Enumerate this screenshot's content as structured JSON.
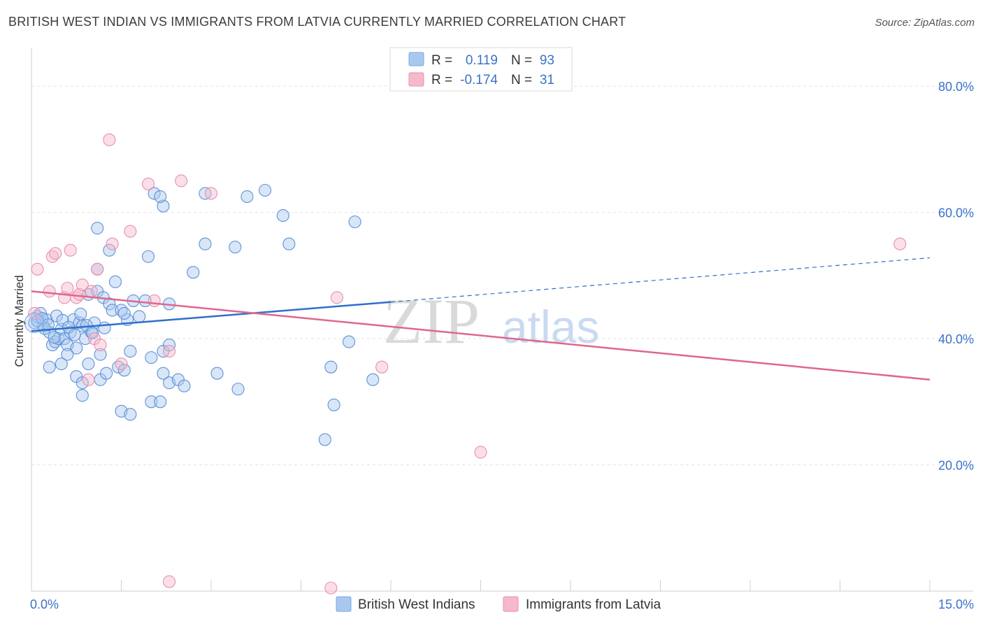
{
  "title": "BRITISH WEST INDIAN VS IMMIGRANTS FROM LATVIA CURRENTLY MARRIED CORRELATION CHART",
  "source": "Source: ZipAtlas.com",
  "watermark": {
    "zip": "ZIP",
    "atlas": "atlas"
  },
  "legend_box": {
    "rows": [
      {
        "r_label": "R =",
        "r_value": "0.119",
        "n_label": "N =",
        "n_value": "93",
        "color": "#a9c8f0"
      },
      {
        "r_label": "R =",
        "r_value": "-0.174",
        "n_label": "N =",
        "n_value": "31",
        "color": "#f6b9cc"
      }
    ]
  },
  "bottom_legend": [
    {
      "label": "British West Indians",
      "color": "#a9c8f0"
    },
    {
      "label": "Immigrants from Latvia",
      "color": "#f6b9cc"
    }
  ],
  "chart_data": {
    "type": "scatter",
    "title": "BRITISH WEST INDIAN VS IMMIGRANTS FROM LATVIA CURRENTLY MARRIED CORRELATION CHART",
    "xlabel": "",
    "ylabel": "Currently Married",
    "xlim": [
      0,
      15
    ],
    "ylim": [
      0,
      85
    ],
    "x_tick_labels": [
      {
        "value": 0,
        "label": "0.0%"
      },
      {
        "value": 15,
        "label": "15.0%"
      }
    ],
    "y_tick_labels": [
      {
        "value": 20,
        "label": "20.0%"
      },
      {
        "value": 40,
        "label": "40.0%"
      },
      {
        "value": 60,
        "label": "60.0%"
      },
      {
        "value": 80,
        "label": "80.0%"
      }
    ],
    "grid": true,
    "legend_position": "top-center",
    "series": [
      {
        "name": "British West Indians",
        "color": "#7aa9e6",
        "stroke": "#5f92d6",
        "trend": {
          "x0": 0.0,
          "y0": 41.2,
          "x1": 6.0,
          "y1": 45.8,
          "dash_to_x": 15.0,
          "dash_to_y": 52.8,
          "color": "#2f6fcc"
        },
        "points": [
          [
            0.05,
            42.5
          ],
          [
            0.1,
            43.5
          ],
          [
            0.15,
            44.0
          ],
          [
            0.2,
            42.0
          ],
          [
            0.25,
            43.0
          ],
          [
            0.3,
            41.0
          ],
          [
            0.35,
            39.0
          ],
          [
            0.4,
            39.5
          ],
          [
            0.45,
            40.0
          ],
          [
            0.5,
            41.5
          ],
          [
            0.55,
            40.0
          ],
          [
            0.6,
            39.0
          ],
          [
            0.65,
            41.0
          ],
          [
            0.7,
            43.0
          ],
          [
            0.75,
            38.5
          ],
          [
            0.8,
            42.5
          ],
          [
            0.9,
            40.0
          ],
          [
            0.95,
            47.0
          ],
          [
            1.0,
            41.0
          ],
          [
            1.1,
            47.5
          ],
          [
            1.15,
            37.5
          ],
          [
            1.2,
            46.5
          ],
          [
            1.3,
            45.5
          ],
          [
            1.35,
            44.5
          ],
          [
            1.4,
            49.0
          ],
          [
            1.5,
            44.5
          ],
          [
            1.6,
            43.0
          ],
          [
            1.7,
            46.0
          ],
          [
            1.8,
            43.5
          ],
          [
            1.05,
            42.5
          ],
          [
            0.85,
            42.0
          ],
          [
            0.3,
            35.5
          ],
          [
            0.5,
            36.0
          ],
          [
            0.6,
            37.5
          ],
          [
            0.75,
            34.0
          ],
          [
            0.85,
            33.0
          ],
          [
            0.95,
            36.0
          ],
          [
            1.15,
            33.5
          ],
          [
            1.25,
            34.5
          ],
          [
            1.45,
            35.5
          ],
          [
            1.55,
            35.0
          ],
          [
            1.65,
            38.0
          ],
          [
            2.0,
            37.0
          ],
          [
            2.2,
            38.0
          ],
          [
            2.3,
            39.0
          ],
          [
            2.2,
            34.5
          ],
          [
            2.3,
            33.0
          ],
          [
            2.45,
            33.5
          ],
          [
            2.55,
            32.5
          ],
          [
            0.85,
            31.0
          ],
          [
            1.5,
            28.5
          ],
          [
            1.65,
            28.0
          ],
          [
            2.0,
            30.0
          ],
          [
            2.15,
            30.0
          ],
          [
            3.1,
            34.5
          ],
          [
            3.45,
            32.0
          ],
          [
            5.0,
            35.5
          ],
          [
            5.3,
            39.5
          ],
          [
            5.7,
            33.5
          ],
          [
            5.05,
            29.5
          ],
          [
            4.9,
            24.0
          ],
          [
            1.1,
            57.5
          ],
          [
            1.3,
            54.0
          ],
          [
            1.1,
            51.0
          ],
          [
            1.95,
            53.0
          ],
          [
            2.05,
            63.0
          ],
          [
            2.2,
            61.0
          ],
          [
            2.15,
            62.5
          ],
          [
            2.7,
            50.5
          ],
          [
            2.9,
            55.0
          ],
          [
            2.9,
            63.0
          ],
          [
            3.4,
            54.5
          ],
          [
            3.6,
            62.5
          ],
          [
            3.9,
            63.5
          ],
          [
            4.2,
            59.5
          ],
          [
            4.3,
            55.0
          ],
          [
            5.4,
            58.5
          ],
          [
            1.9,
            46.0
          ],
          [
            2.3,
            45.5
          ],
          [
            1.55,
            44.0
          ],
          [
            0.1,
            42.8
          ],
          [
            0.18,
            43.2
          ],
          [
            0.22,
            41.6
          ],
          [
            0.28,
            42.2
          ],
          [
            0.38,
            40.2
          ],
          [
            0.42,
            43.6
          ],
          [
            0.52,
            42.9
          ],
          [
            0.62,
            41.8
          ],
          [
            0.72,
            40.6
          ],
          [
            0.82,
            43.9
          ],
          [
            0.92,
            42.1
          ],
          [
            1.02,
            40.9
          ],
          [
            1.22,
            41.7
          ]
        ]
      },
      {
        "name": "Immigrants from Latvia",
        "color": "#f6b9cc",
        "stroke": "#e890ab",
        "trend": {
          "x0": 0.0,
          "y0": 47.5,
          "x1": 15.0,
          "y1": 33.5,
          "color": "#e0668f"
        },
        "points": [
          [
            0.1,
            51.0
          ],
          [
            0.3,
            47.5
          ],
          [
            0.35,
            53.0
          ],
          [
            0.4,
            53.5
          ],
          [
            0.55,
            46.5
          ],
          [
            0.65,
            54.0
          ],
          [
            0.6,
            48.0
          ],
          [
            0.75,
            46.5
          ],
          [
            0.8,
            47.0
          ],
          [
            0.85,
            48.5
          ],
          [
            1.0,
            47.5
          ],
          [
            1.1,
            51.0
          ],
          [
            1.35,
            55.0
          ],
          [
            1.65,
            57.0
          ],
          [
            1.3,
            71.5
          ],
          [
            1.95,
            64.5
          ],
          [
            2.5,
            65.0
          ],
          [
            3.0,
            63.0
          ],
          [
            1.05,
            40.0
          ],
          [
            1.15,
            39.0
          ],
          [
            1.5,
            36.0
          ],
          [
            2.3,
            38.0
          ],
          [
            2.05,
            46.0
          ],
          [
            0.95,
            33.5
          ],
          [
            5.1,
            46.5
          ],
          [
            5.85,
            35.5
          ],
          [
            7.5,
            22.0
          ],
          [
            2.3,
            1.5
          ],
          [
            5.0,
            0.5
          ],
          [
            14.5,
            55.0
          ],
          [
            0.05,
            44.0
          ]
        ]
      }
    ]
  }
}
